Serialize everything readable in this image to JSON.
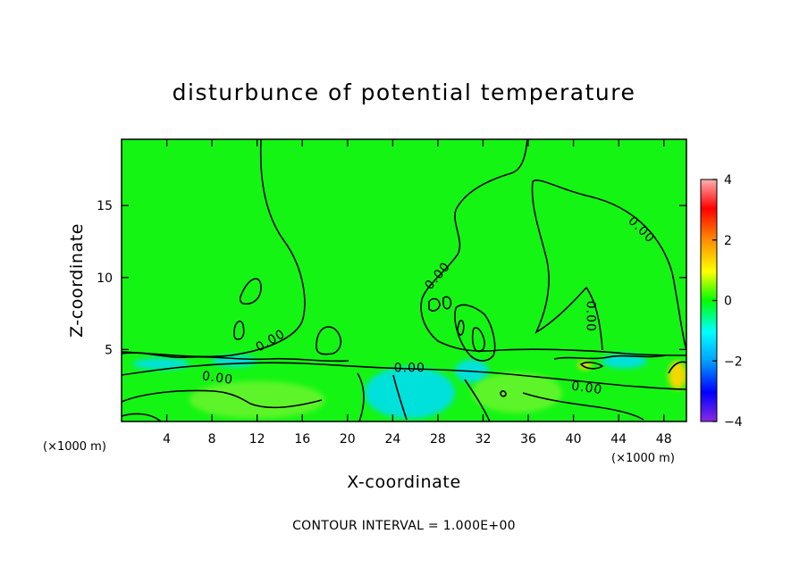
{
  "title": "disturbunce of potential temperature",
  "footer": "CONTOUR INTERVAL = 1.000E+00",
  "colors": {
    "background_field": "#14f514",
    "contour_line": "#000000",
    "colorbar": [
      "#8a2be2",
      "#0000ff",
      "#00a0ff",
      "#00ffff",
      "#00ff00",
      "#ffff00",
      "#ff8c00",
      "#ff0000",
      "#ffb0b0"
    ]
  },
  "chart_data": {
    "type": "heatmap",
    "title": "disturbunce of potential temperature",
    "xlabel": "X-coordinate",
    "ylabel": "Z-coordinate",
    "x_unit": "(×1000 m)",
    "xlim": [
      0,
      50
    ],
    "ylim": [
      0,
      19.6
    ],
    "x_ticks": [
      4,
      8,
      12,
      16,
      20,
      24,
      28,
      32,
      36,
      40,
      44,
      48
    ],
    "y_ticks": [
      5,
      10,
      15
    ],
    "colorbar": {
      "range": [
        -4,
        4
      ],
      "ticks": [
        -4,
        -2,
        0,
        2,
        4
      ]
    },
    "contour_interval": 1.0,
    "contour_labels": [
      {
        "text": "0.00",
        "x": 13.2,
        "y": 5.6,
        "angle": -30
      },
      {
        "text": "0.00",
        "x": 8.5,
        "y": 3.0,
        "angle": 8
      },
      {
        "text": "0.00",
        "x": 25.5,
        "y": 3.7,
        "angle": 0
      },
      {
        "text": "0.00",
        "x": 28.0,
        "y": 10.1,
        "angle": -50
      },
      {
        "text": "0.00",
        "x": 41.5,
        "y": 7.3,
        "angle": 90
      },
      {
        "text": "0.00",
        "x": 46.0,
        "y": 13.3,
        "angle": 45
      },
      {
        "text": "0.00",
        "x": 41.2,
        "y": 2.3,
        "angle": 8
      }
    ],
    "anomalies": [
      {
        "kind": "negative",
        "value": -1,
        "x": 25.5,
        "y": 2.0,
        "rx": 4.0,
        "ry": 1.8
      },
      {
        "kind": "negative",
        "value": -1,
        "x": 3.5,
        "y": 4.0,
        "rx": 2.5,
        "ry": 0.4
      },
      {
        "kind": "negative",
        "value": -1,
        "x": 10.0,
        "y": 4.2,
        "rx": 2.0,
        "ry": 0.4
      },
      {
        "kind": "negative",
        "value": -1,
        "x": 44.5,
        "y": 4.2,
        "rx": 2.0,
        "ry": 0.5
      },
      {
        "kind": "negative",
        "value": -1,
        "x": 31.0,
        "y": 3.5,
        "rx": 1.5,
        "ry": 0.8
      },
      {
        "kind": "positive",
        "value": 2,
        "x": 49.2,
        "y": 3.2,
        "rx": 0.8,
        "ry": 1.0
      },
      {
        "kind": "positive",
        "value": 2,
        "x": 41.0,
        "y": 3.9,
        "rx": 0.6,
        "ry": 0.3
      },
      {
        "kind": "weak-positive",
        "value": 0.5,
        "x": 12.0,
        "y": 1.5,
        "rx": 6.0,
        "ry": 1.3
      },
      {
        "kind": "weak-positive",
        "value": 0.5,
        "x": 35.0,
        "y": 2.0,
        "rx": 4.0,
        "ry": 1.4
      }
    ]
  }
}
